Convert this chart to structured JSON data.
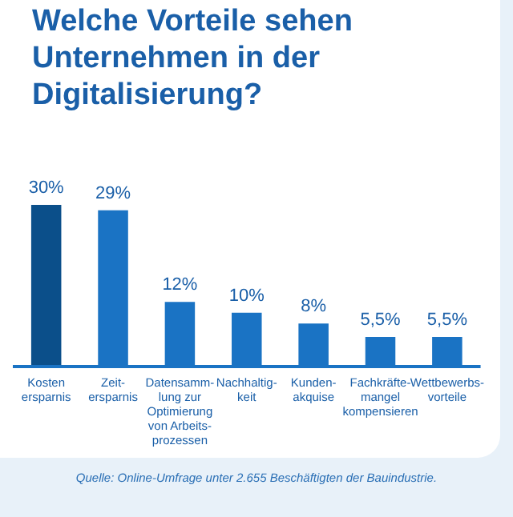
{
  "chart_data": {
    "type": "bar",
    "title": "Welche Vorteile sehen Unternehmen in der Digitalisierung?",
    "categories": [
      "Kosten\nersparnis",
      "Zeit-\nersparnis",
      "Datensamm-\nlung zur\nOptimierung\nvon Arbeits-\nprozessen",
      "Nachhaltig-\nkeit",
      "Kunden-\nakquise",
      "Fachkräfte-\nmangel\nkompensieren",
      "Wettbewerbs-\nvorteile"
    ],
    "values": [
      30,
      29,
      12,
      10,
      8,
      5.5,
      5.5
    ],
    "value_labels": [
      "30%",
      "29%",
      "12%",
      "10%",
      "8%",
      "5,5%",
      "5,5%"
    ],
    "colors": [
      "#0b4f8a",
      "#1a73c4",
      "#1a73c4",
      "#1a73c4",
      "#1a73c4",
      "#1a73c4",
      "#1a73c4"
    ],
    "ylim": [
      0,
      30
    ],
    "grid": false,
    "legend": false,
    "tick_labels": "x",
    "annotations": [
      "Quelle: Online-Umfrage unter 2.655 Beschäftigten der Bauindustrie."
    ]
  }
}
